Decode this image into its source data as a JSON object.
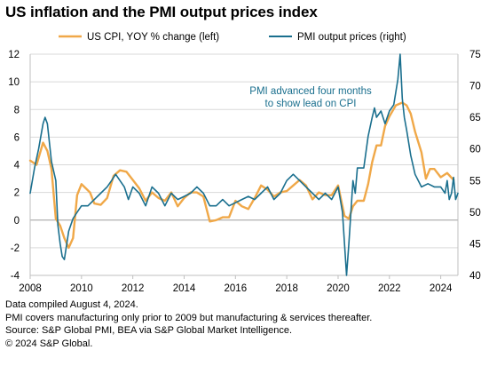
{
  "title": "US inflation and the PMI output prices index",
  "notes": [
    "Data compiled August 4, 2024.",
    "PMI covers manufacturing only prior to 2009 but manufacturing & services thereafter.",
    "Source: S&P Global PMI, BEA via S&P Global Market Intelligence.",
    "© 2024 S&P Global."
  ],
  "chart_data": {
    "type": "line",
    "title": "US inflation and the PMI output prices index",
    "legend": {
      "placement": "top",
      "entries": [
        "US CPI, YOY % change (left)",
        "PMI output prices (right)"
      ]
    },
    "annotation": [
      "PMI advanced four months",
      "to show lead on CPI"
    ],
    "x_ticks": [
      "2008",
      "2010",
      "2012",
      "2014",
      "2016",
      "2018",
      "2020",
      "2022",
      "2024"
    ],
    "xlim": [
      2008,
      2024.67
    ],
    "y_left": {
      "ylim": [
        -4,
        12
      ],
      "ticks": [
        -4,
        -2,
        0,
        2,
        4,
        6,
        8,
        10,
        12
      ]
    },
    "y_right": {
      "ylim": [
        40,
        75
      ],
      "ticks": [
        40,
        45,
        50,
        55,
        60,
        65,
        70,
        75
      ]
    },
    "grid": "horizontal",
    "series": [
      {
        "name": "US CPI, YOY % change (left)",
        "axis": "left",
        "color": "#f0a848",
        "x": [
          2008.0,
          2008.25,
          2008.5,
          2008.67,
          2008.83,
          2009.0,
          2009.17,
          2009.33,
          2009.5,
          2009.67,
          2009.83,
          2010.0,
          2010.17,
          2010.33,
          2010.5,
          2010.75,
          2011.0,
          2011.25,
          2011.5,
          2011.75,
          2012.0,
          2012.25,
          2012.5,
          2012.75,
          2013.0,
          2013.25,
          2013.5,
          2013.75,
          2014.0,
          2014.25,
          2014.5,
          2014.75,
          2015.0,
          2015.25,
          2015.5,
          2015.75,
          2016.0,
          2016.25,
          2016.5,
          2016.75,
          2017.0,
          2017.25,
          2017.5,
          2017.75,
          2018.0,
          2018.25,
          2018.5,
          2018.75,
          2019.0,
          2019.25,
          2019.5,
          2019.75,
          2020.0,
          2020.25,
          2020.42,
          2020.58,
          2020.75,
          2021.0,
          2021.17,
          2021.33,
          2021.5,
          2021.67,
          2021.83,
          2022.0,
          2022.25,
          2022.5,
          2022.67,
          2022.83,
          2023.0,
          2023.25,
          2023.42,
          2023.58,
          2023.75,
          2024.0,
          2024.25,
          2024.5
        ],
        "values": [
          4.3,
          4.0,
          5.6,
          5.0,
          3.7,
          0.1,
          -0.4,
          -1.3,
          -2.0,
          -1.3,
          1.8,
          2.6,
          2.3,
          2.0,
          1.2,
          1.1,
          1.6,
          3.2,
          3.6,
          3.5,
          2.9,
          2.3,
          1.4,
          2.0,
          1.6,
          1.4,
          2.0,
          1.0,
          1.6,
          2.0,
          2.0,
          1.7,
          -0.1,
          0.0,
          0.2,
          0.2,
          1.4,
          1.0,
          0.8,
          1.6,
          2.5,
          2.2,
          1.7,
          2.0,
          2.1,
          2.5,
          2.9,
          2.5,
          1.5,
          2.0,
          1.8,
          1.8,
          2.5,
          0.3,
          0.1,
          1.0,
          1.4,
          1.4,
          2.6,
          4.2,
          5.4,
          5.4,
          6.8,
          7.5,
          8.3,
          8.5,
          8.3,
          7.7,
          6.4,
          4.9,
          3.0,
          3.7,
          3.7,
          3.1,
          3.4,
          2.9
        ]
      },
      {
        "name": "PMI output prices (right)",
        "axis": "right",
        "color": "#1a6f8e",
        "x": [
          2008.0,
          2008.17,
          2008.33,
          2008.5,
          2008.58,
          2008.67,
          2008.83,
          2009.0,
          2009.08,
          2009.17,
          2009.25,
          2009.33,
          2009.5,
          2009.67,
          2009.83,
          2010.0,
          2010.25,
          2010.5,
          2010.75,
          2011.0,
          2011.17,
          2011.33,
          2011.5,
          2011.67,
          2011.83,
          2012.0,
          2012.25,
          2012.5,
          2012.75,
          2013.0,
          2013.25,
          2013.5,
          2013.75,
          2014.0,
          2014.25,
          2014.5,
          2014.75,
          2015.0,
          2015.25,
          2015.5,
          2015.75,
          2016.0,
          2016.25,
          2016.5,
          2016.75,
          2017.0,
          2017.25,
          2017.5,
          2017.75,
          2018.0,
          2018.25,
          2018.5,
          2018.75,
          2019.0,
          2019.25,
          2019.5,
          2019.75,
          2020.0,
          2020.17,
          2020.25,
          2020.33,
          2020.42,
          2020.5,
          2020.58,
          2020.67,
          2020.75,
          2021.0,
          2021.17,
          2021.33,
          2021.42,
          2021.5,
          2021.67,
          2021.75,
          2021.83,
          2022.0,
          2022.17,
          2022.25,
          2022.33,
          2022.42,
          2022.5,
          2022.58,
          2022.67,
          2022.83,
          2023.0,
          2023.25,
          2023.5,
          2023.75,
          2024.0,
          2024.17,
          2024.25,
          2024.33,
          2024.42,
          2024.5,
          2024.58,
          2024.67
        ],
        "values": [
          53.0,
          57.0,
          60.0,
          64.0,
          65.0,
          64.0,
          58.0,
          55.0,
          48.0,
          45.0,
          43.0,
          42.5,
          47.0,
          49.0,
          50.0,
          51.0,
          51.0,
          52.0,
          53.0,
          54.0,
          55.0,
          56.0,
          55.0,
          54.0,
          52.0,
          54.0,
          53.0,
          51.0,
          54.0,
          53.0,
          51.0,
          53.0,
          52.0,
          52.5,
          53.0,
          54.0,
          53.0,
          51.0,
          51.0,
          52.0,
          51.0,
          51.5,
          52.0,
          52.5,
          52.0,
          53.0,
          54.0,
          52.0,
          53.0,
          55.0,
          56.0,
          55.0,
          54.0,
          53.0,
          52.0,
          53.0,
          52.0,
          54.0,
          50.0,
          45.0,
          40.0,
          45.0,
          50.0,
          55.0,
          53.0,
          57.0,
          57.0,
          62.0,
          65.0,
          66.5,
          65.0,
          66.0,
          65.0,
          64.0,
          66.0,
          67.0,
          69.0,
          71.0,
          75.0,
          68.0,
          65.0,
          63.0,
          59.0,
          56.0,
          54.0,
          54.5,
          54.0,
          54.0,
          53.0,
          55.0,
          52.0,
          53.0,
          55.5,
          52.0,
          53.0
        ]
      }
    ]
  }
}
